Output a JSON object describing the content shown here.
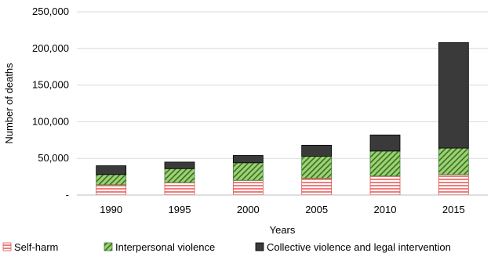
{
  "chart_data": {
    "type": "bar",
    "stacked": true,
    "categories": [
      "1990",
      "1995",
      "2000",
      "2005",
      "2010",
      "2015"
    ],
    "series": [
      {
        "name": "Self-harm",
        "values": [
          14000,
          17000,
          20000,
          23000,
          26000,
          28000
        ],
        "color": "#f4a6a6",
        "pattern": "horizontal-stripes",
        "stroke": "#d9534f"
      },
      {
        "name": "Interpersonal violence",
        "values": [
          14000,
          19000,
          24000,
          30000,
          34000,
          36000
        ],
        "color": "#8fcf6b",
        "pattern": "diagonal-stripes",
        "stroke": "#3e7d3e"
      },
      {
        "name": "Collective violence and legal intervention",
        "values": [
          12000,
          9000,
          10000,
          15000,
          22000,
          144000
        ],
        "color": "#3a3a3a",
        "pattern": "solid",
        "stroke": "#000000"
      }
    ],
    "xlabel": "Years",
    "ylabel": "Number of deaths",
    "ylim": [
      0,
      250000
    ],
    "yticks": [
      0,
      50000,
      100000,
      150000,
      200000,
      250000
    ],
    "ytick_labels": [
      "-",
      "50,000",
      "100,000",
      "150,000",
      "200,000",
      "250,000"
    ],
    "grid": true,
    "legend_position": "bottom"
  }
}
